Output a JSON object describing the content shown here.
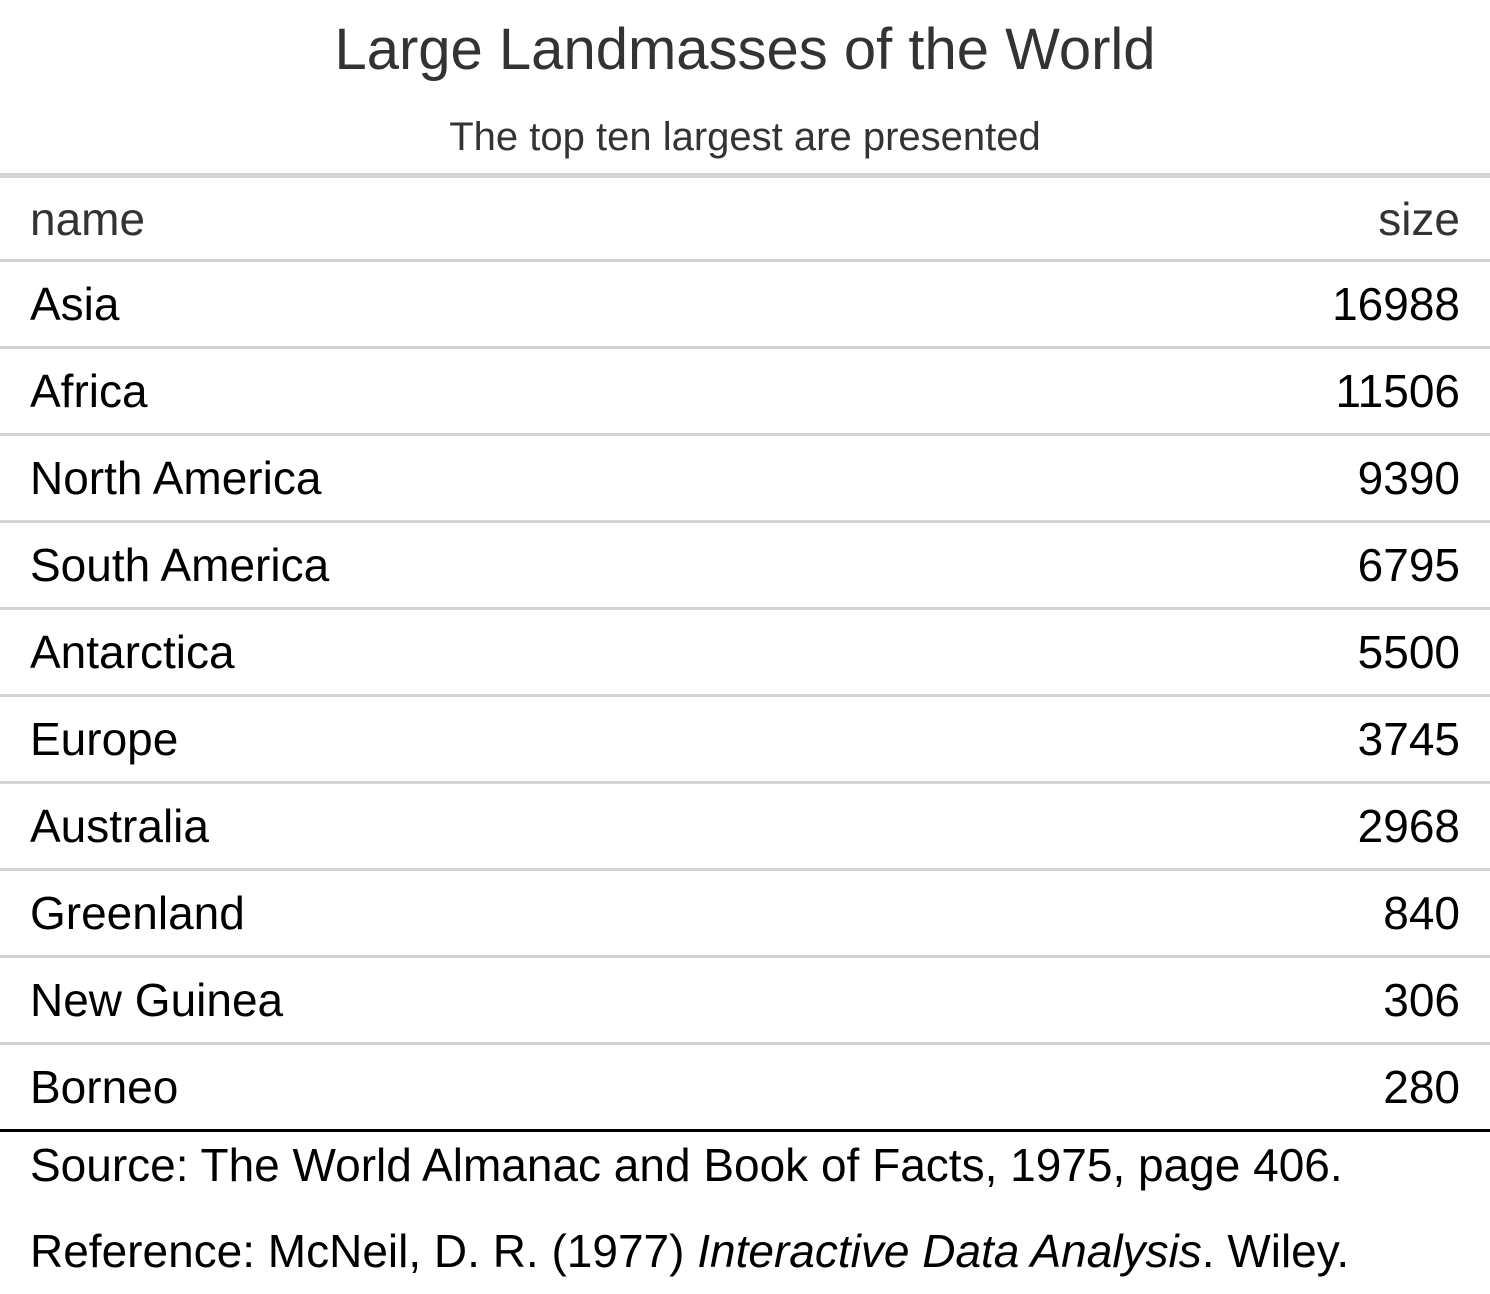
{
  "title": "Large Landmasses of the World",
  "subtitle": "The top ten largest are presented",
  "columns": [
    "name",
    "size"
  ],
  "rows": [
    {
      "name": "Asia",
      "size": "16988"
    },
    {
      "name": "Africa",
      "size": "11506"
    },
    {
      "name": "North America",
      "size": "9390"
    },
    {
      "name": "South America",
      "size": "6795"
    },
    {
      "name": "Antarctica",
      "size": "5500"
    },
    {
      "name": "Europe",
      "size": "3745"
    },
    {
      "name": "Australia",
      "size": "2968"
    },
    {
      "name": "Greenland",
      "size": "840"
    },
    {
      "name": "New Guinea",
      "size": "306"
    },
    {
      "name": "Borneo",
      "size": "280"
    }
  ],
  "source_note": "Source: The World Almanac and Book of Facts, 1975, page 406.",
  "reference": {
    "prefix": "Reference: McNeil, D. R. (1977) ",
    "book": "Interactive Data Analysis",
    "suffix": ". Wiley."
  }
}
